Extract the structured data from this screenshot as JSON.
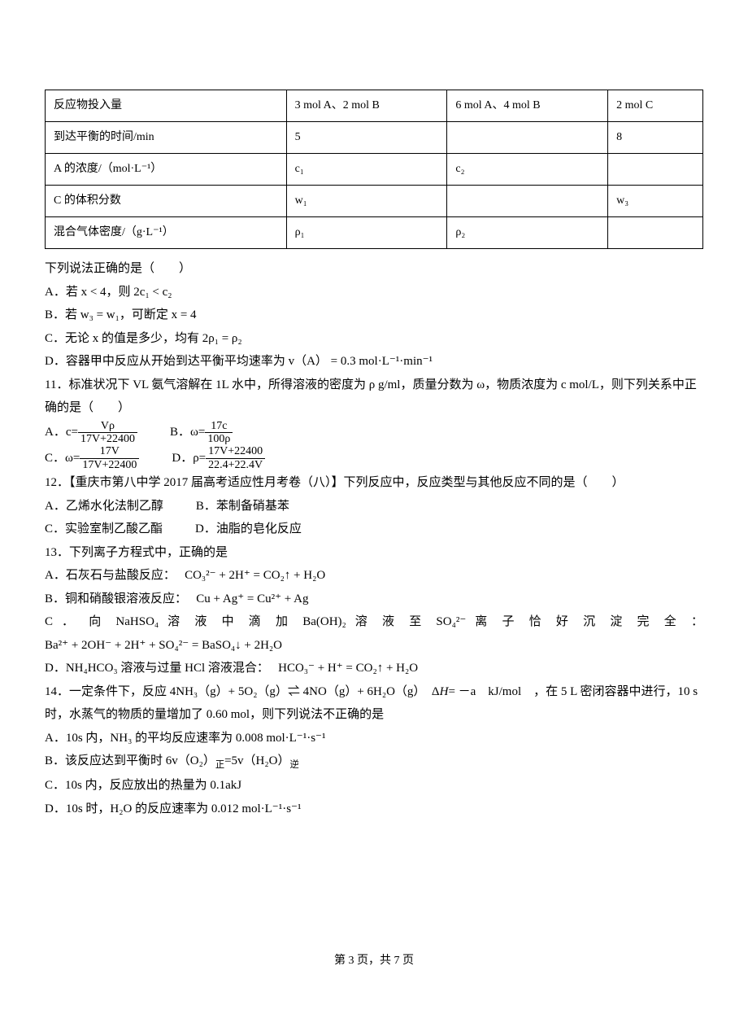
{
  "table": {
    "rows": [
      [
        "反应物投入量",
        "3 mol A、2 mol B",
        "6 mol A、4 mol B",
        "2 mol C"
      ],
      [
        "到达平衡的时间/min",
        "5",
        "",
        "8"
      ],
      [
        "A 的浓度/（mol·L⁻¹）",
        "c₁",
        "c₂",
        ""
      ],
      [
        "C 的体积分数",
        "w₁",
        "",
        "w₃"
      ],
      [
        "混合气体密度/（g·L⁻¹）",
        "ρ₁",
        "ρ₂",
        ""
      ]
    ],
    "border_color": "#000000",
    "font_size": 14
  },
  "q10": {
    "stem": "下列说法正确的是（　　）",
    "A": "A．若 x < 4，则 2c₁ < c₂",
    "B": "B．若 w₃ = w₁，可断定 x = 4",
    "C": "C．无论 x 的值是多少，均有 2ρ₁ = ρ₂",
    "D": "D．容器甲中反应从开始到达平衡平均速率为 v（A） = 0.3 mol·L⁻¹·min⁻¹"
  },
  "q11": {
    "stem": "11．标准状况下 VL 氨气溶解在 1L 水中，所得溶液的密度为 ρ g/ml，质量分数为 ω，物质浓度为 c mol/L，则下列关系中正确的是（　　）",
    "A": {
      "label": "A．c=",
      "num": "Vρ",
      "den": "17V+22400"
    },
    "B": {
      "label": "B．ω=",
      "num": "17c",
      "den": "100ρ"
    },
    "C": {
      "label": "C．ω=",
      "num": "17V",
      "den": "17V+22400"
    },
    "D": {
      "label": "D．ρ=",
      "num": "17V+22400",
      "den": "22.4+22.4V"
    }
  },
  "q12": {
    "stem": "12．【重庆市第八中学 2017 届高考适应性月考卷（八）】下列反应中，反应类型与其他反应不同的是（　　）",
    "A": "A．乙烯水化法制乙醇",
    "B": "B．苯制备硝基苯",
    "C": "C．实验室制乙酸乙酯",
    "D": "D．油脂的皂化反应"
  },
  "q13": {
    "stem": "13．下列离子方程式中，正确的是",
    "A": {
      "pre": "A．石灰石与盐酸反应：　",
      "eq": "CO₃²⁻ + 2H⁺ = CO₂↑ + H₂O"
    },
    "B": {
      "pre": "B．铜和硝酸银溶液反应：　",
      "eq": "Cu + Ag⁺ = Cu²⁺ + Ag"
    },
    "C_pre": "C ． 向 NaHSO₄ 溶 液 中 滴 加 Ba(OH)₂ 溶 液 至 SO₄²⁻ 离 子 恰 好 沉 淀 完 全 ：",
    "C_eq": "Ba²⁺ + 2OH⁻ + 2H⁺ + SO₄²⁻ = BaSO₄↓ + 2H₂O",
    "D": {
      "pre": "D．NH₄HCO₃ 溶液与过量 HCl 溶液混合：　",
      "eq": "HCO₃⁻ + H⁺ = CO₂↑ + H₂O"
    }
  },
  "q14": {
    "stem1": "14．一定条件下，反应 4NH₃（g）+ 5O₂（g）⇌ 4NO（g）+ 6H₂O（g）　Δ",
    "stemH": "H",
    "stem2": "= －a　kJ/mol　，在 5 L 密闭容器中进行，10 s 时，水蒸气的物质的量增加了 0.60 mol，则下列说法不正确的是",
    "A": "A．10s 内，NH₃ 的平均反应速率为 0.008 mol·L⁻¹·s⁻¹",
    "B_pre": "B．该反应达到平衡时 6v（O₂）",
    "B_sub1": "正",
    "B_mid": "=5v（H₂O）",
    "B_sub2": "逆",
    "C": "C．10s 内，反应放出的热量为 0.1akJ",
    "D": "D．10s 时，H₂O 的反应速率为 0.012 mol·L⁻¹·s⁻¹"
  },
  "footer": "第 3 页，共 7 页",
  "colors": {
    "text": "#000000",
    "background": "#ffffff"
  }
}
